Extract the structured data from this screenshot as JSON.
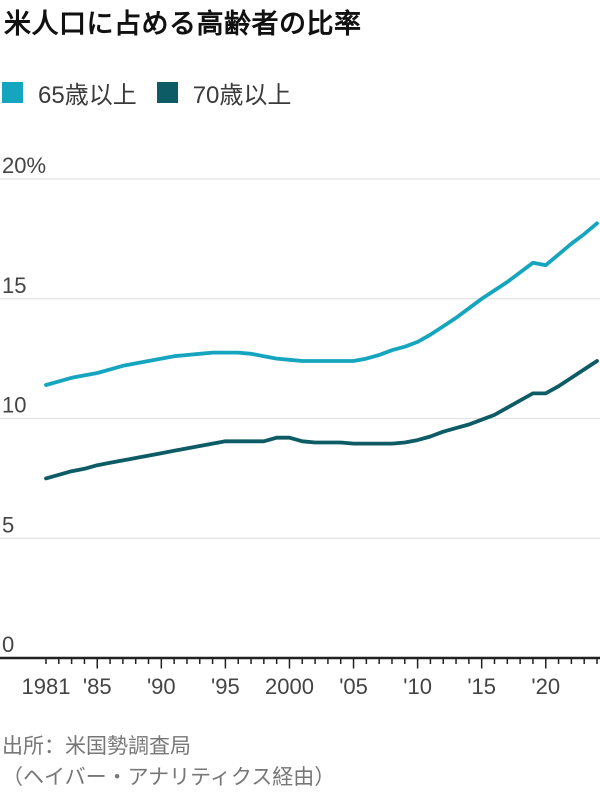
{
  "title": "米人口に占める高齢者の比率",
  "legend": {
    "items": [
      {
        "label": "65歳以上",
        "color": "#15a5bf"
      },
      {
        "label": "70歳以上",
        "color": "#0d5b64"
      }
    ]
  },
  "source": {
    "line1": "出所：米国勢調査局",
    "line2": "（ヘイバー・アナリティクス経由）"
  },
  "chart_data": {
    "type": "line",
    "title": "米人口に占める高齢者の比率",
    "xlabel": "",
    "ylabel": "",
    "xlim": [
      1981,
      2024
    ],
    "ylim": [
      0,
      20
    ],
    "grid": true,
    "legend_position": "top",
    "y_ticks": [
      {
        "value": 0,
        "label": "0"
      },
      {
        "value": 5,
        "label": "5"
      },
      {
        "value": 10,
        "label": "10"
      },
      {
        "value": 15,
        "label": "15"
      },
      {
        "value": 20,
        "label": "20%"
      }
    ],
    "x_ticks": [
      {
        "year": 1981,
        "label": "1981"
      },
      {
        "year": 1985,
        "label": "'85"
      },
      {
        "year": 1990,
        "label": "'90"
      },
      {
        "year": 1995,
        "label": "'95"
      },
      {
        "year": 2000,
        "label": "2000"
      },
      {
        "year": 2005,
        "label": "'05"
      },
      {
        "year": 2010,
        "label": "'10"
      },
      {
        "year": 2015,
        "label": "'15"
      },
      {
        "year": 2020,
        "label": "'20"
      }
    ],
    "x": [
      1981,
      1982,
      1983,
      1984,
      1985,
      1986,
      1987,
      1988,
      1989,
      1990,
      1991,
      1992,
      1993,
      1994,
      1995,
      1996,
      1997,
      1998,
      1999,
      2000,
      2001,
      2002,
      2003,
      2004,
      2005,
      2006,
      2007,
      2008,
      2009,
      2010,
      2011,
      2012,
      2013,
      2014,
      2015,
      2016,
      2017,
      2018,
      2019,
      2020,
      2021,
      2022,
      2023,
      2024
    ],
    "series": [
      {
        "name": "65歳以上",
        "color": "#15a5bf",
        "values": [
          11.4,
          11.55,
          11.7,
          11.8,
          11.9,
          12.05,
          12.2,
          12.3,
          12.4,
          12.5,
          12.6,
          12.65,
          12.7,
          12.75,
          12.75,
          12.75,
          12.7,
          12.6,
          12.5,
          12.45,
          12.4,
          12.4,
          12.4,
          12.4,
          12.4,
          12.5,
          12.65,
          12.85,
          13.0,
          13.2,
          13.5,
          13.85,
          14.2,
          14.6,
          15.0,
          15.35,
          15.7,
          16.1,
          16.5,
          16.4,
          16.85,
          17.3,
          17.7,
          18.15
        ]
      },
      {
        "name": "70歳以上",
        "color": "#0d5b64",
        "values": [
          7.5,
          7.65,
          7.8,
          7.9,
          8.05,
          8.15,
          8.25,
          8.35,
          8.45,
          8.55,
          8.65,
          8.75,
          8.85,
          8.95,
          9.05,
          9.05,
          9.05,
          9.05,
          9.2,
          9.2,
          9.05,
          9.0,
          9.0,
          9.0,
          8.95,
          8.95,
          8.95,
          8.95,
          9.0,
          9.1,
          9.25,
          9.45,
          9.6,
          9.75,
          9.95,
          10.15,
          10.45,
          10.75,
          11.05,
          11.05,
          11.35,
          11.7,
          12.05,
          12.4
        ]
      }
    ],
    "style": {
      "grid_color": "#e2e2e2",
      "axis_color": "#222222",
      "tick_label_color": "#444444",
      "line_width": 3.8
    }
  }
}
